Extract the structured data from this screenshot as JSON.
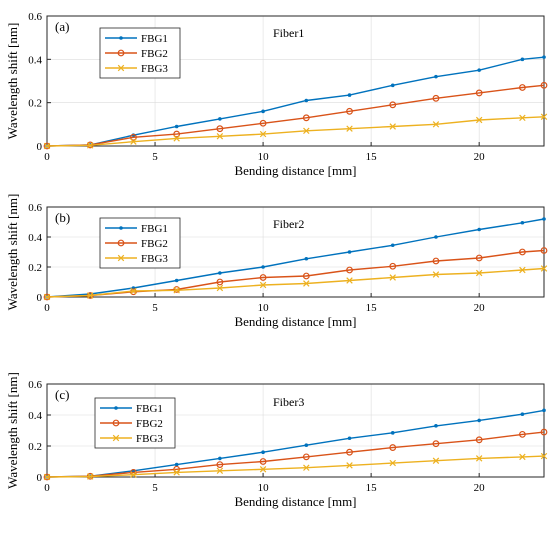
{
  "colors": {
    "FBG1": "#0072BD",
    "FBG2": "#D95319",
    "FBG3": "#EDB120"
  },
  "chart_data": [
    {
      "type": "line",
      "panel_tag": "(a)",
      "title": "Fiber1",
      "xlabel": "Bending distance [mm]",
      "ylabel": "Wavelength shift [nm]",
      "xlim": [
        0,
        23
      ],
      "ylim": [
        0,
        0.6
      ],
      "xticks": [
        "0",
        "5",
        "10",
        "15",
        "20"
      ],
      "yticks": [
        "0",
        "0.2",
        "0.4",
        "0.6"
      ],
      "grid": true,
      "legend_position": "top-left",
      "x": [
        0,
        2,
        4,
        6,
        8,
        10,
        12,
        14,
        16,
        18,
        20,
        22,
        23
      ],
      "series": [
        {
          "name": "FBG1",
          "marker": "dot",
          "values": [
            0,
            0.005,
            0.05,
            0.09,
            0.125,
            0.16,
            0.21,
            0.235,
            0.28,
            0.32,
            0.35,
            0.4,
            0.41
          ]
        },
        {
          "name": "FBG2",
          "marker": "circle",
          "values": [
            0,
            0.005,
            0.04,
            0.055,
            0.08,
            0.105,
            0.13,
            0.16,
            0.19,
            0.22,
            0.245,
            0.27,
            0.28
          ]
        },
        {
          "name": "FBG3",
          "marker": "x",
          "values": [
            0,
            0.003,
            0.02,
            0.035,
            0.045,
            0.055,
            0.07,
            0.08,
            0.09,
            0.1,
            0.12,
            0.13,
            0.135
          ]
        }
      ]
    },
    {
      "type": "line",
      "panel_tag": "(b)",
      "title": "Fiber2",
      "xlabel": "Bending distance [mm]",
      "ylabel": "Wavelength shift [nm]",
      "xlim": [
        0,
        23
      ],
      "ylim": [
        0,
        0.6
      ],
      "xticks": [
        "0",
        "5",
        "10",
        "15",
        "20"
      ],
      "yticks": [
        "0",
        "0.2",
        "0.4",
        "0.6"
      ],
      "grid": true,
      "legend_position": "top-left",
      "x": [
        0,
        2,
        4,
        6,
        8,
        10,
        12,
        14,
        16,
        18,
        20,
        22,
        23
      ],
      "series": [
        {
          "name": "FBG1",
          "marker": "dot",
          "values": [
            0,
            0.02,
            0.06,
            0.11,
            0.16,
            0.2,
            0.255,
            0.3,
            0.345,
            0.4,
            0.45,
            0.495,
            0.52
          ]
        },
        {
          "name": "FBG2",
          "marker": "circle",
          "values": [
            0,
            0.01,
            0.035,
            0.05,
            0.1,
            0.13,
            0.14,
            0.18,
            0.205,
            0.24,
            0.26,
            0.3,
            0.31
          ]
        },
        {
          "name": "FBG3",
          "marker": "x",
          "values": [
            0,
            0.01,
            0.04,
            0.045,
            0.06,
            0.08,
            0.09,
            0.11,
            0.13,
            0.15,
            0.16,
            0.18,
            0.19
          ]
        }
      ]
    },
    {
      "type": "line",
      "panel_tag": "(c)",
      "title": "Fiber3",
      "xlabel": "Bending distance [mm]",
      "ylabel": "Wavelength shift [nm]",
      "xlim": [
        0,
        23
      ],
      "ylim": [
        0,
        0.6
      ],
      "xticks": [
        "0",
        "5",
        "10",
        "15",
        "20"
      ],
      "yticks": [
        "0",
        "0.2",
        "0.4",
        "0.6"
      ],
      "grid": true,
      "legend_position": "top-left",
      "x": [
        0,
        2,
        4,
        6,
        8,
        10,
        12,
        14,
        16,
        18,
        20,
        22,
        23
      ],
      "series": [
        {
          "name": "FBG1",
          "marker": "dot",
          "values": [
            0,
            0.005,
            0.04,
            0.08,
            0.12,
            0.16,
            0.205,
            0.25,
            0.285,
            0.33,
            0.365,
            0.405,
            0.43
          ]
        },
        {
          "name": "FBG2",
          "marker": "circle",
          "values": [
            0,
            0.005,
            0.03,
            0.05,
            0.08,
            0.1,
            0.13,
            0.16,
            0.19,
            0.215,
            0.24,
            0.275,
            0.29
          ]
        },
        {
          "name": "FBG3",
          "marker": "x",
          "values": [
            0,
            0.003,
            0.015,
            0.03,
            0.04,
            0.05,
            0.06,
            0.075,
            0.09,
            0.105,
            0.12,
            0.13,
            0.135
          ]
        }
      ]
    }
  ]
}
